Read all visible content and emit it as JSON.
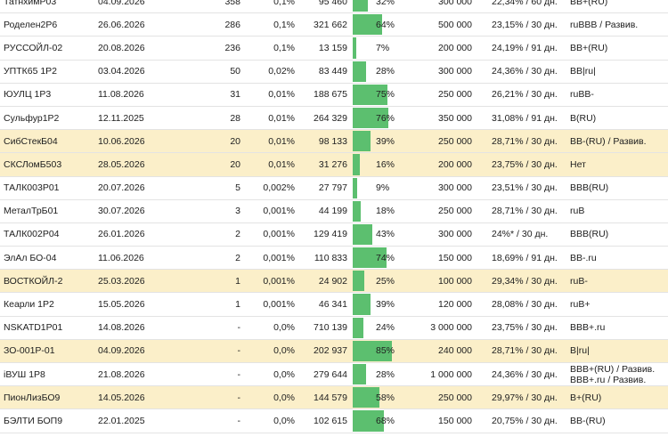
{
  "rows": [
    {
      "name": "ТатнхимР03",
      "date": "04.09.2026",
      "count": "358",
      "share": "0,1%",
      "volume": "95 460",
      "bar_pct": 32,
      "bar_label": "32%",
      "nominal": "300 000",
      "yield": "22,34% / 60 дн.",
      "rating": "BB+(RU)",
      "rating2": "",
      "highlight": false
    },
    {
      "name": "Роделен2Р6",
      "date": "26.06.2026",
      "count": "286",
      "share": "0,1%",
      "volume": "321 662",
      "bar_pct": 64,
      "bar_label": "64%",
      "nominal": "500 000",
      "yield": "23,15% / 30 дн.",
      "rating": "ruBBB / Развив.",
      "rating2": "",
      "highlight": false
    },
    {
      "name": "РУССОЙЛ-02",
      "date": "20.08.2026",
      "count": "236",
      "share": "0,1%",
      "volume": "13 159",
      "bar_pct": 7,
      "bar_label": "7%",
      "nominal": "200 000",
      "yield": "24,19% / 91 дн.",
      "rating": "BB+(RU)",
      "rating2": "",
      "highlight": false
    },
    {
      "name": "УПТК65 1Р2",
      "date": "03.04.2026",
      "count": "50",
      "share": "0,02%",
      "volume": "83 449",
      "bar_pct": 28,
      "bar_label": "28%",
      "nominal": "300 000",
      "yield": "24,36% / 30 дн.",
      "rating": "BB|ru|",
      "rating2": "",
      "highlight": false
    },
    {
      "name": "ЮУЛЦ 1Р3",
      "date": "11.08.2026",
      "count": "31",
      "share": "0,01%",
      "volume": "188 675",
      "bar_pct": 75,
      "bar_label": "75%",
      "nominal": "250 000",
      "yield": "26,21% / 30 дн.",
      "rating": "ruBB-",
      "rating2": "",
      "highlight": false
    },
    {
      "name": "Сульфур1Р2",
      "date": "12.11.2025",
      "count": "28",
      "share": "0,01%",
      "volume": "264 329",
      "bar_pct": 76,
      "bar_label": "76%",
      "nominal": "350 000",
      "yield": "31,08% / 91 дн.",
      "rating": "B(RU)",
      "rating2": "",
      "highlight": false
    },
    {
      "name": "СибСтекБ04",
      "date": "10.06.2026",
      "count": "20",
      "share": "0,01%",
      "volume": "98 133",
      "bar_pct": 39,
      "bar_label": "39%",
      "nominal": "250 000",
      "yield": "28,71% / 30 дн.",
      "rating": "BB-(RU) / Развив.",
      "rating2": "",
      "highlight": true
    },
    {
      "name": "СКСЛомБ503",
      "date": "28.05.2026",
      "count": "20",
      "share": "0,01%",
      "volume": "31 276",
      "bar_pct": 16,
      "bar_label": "16%",
      "nominal": "200 000",
      "yield": "23,75% / 30 дн.",
      "rating": "Нет",
      "rating2": "",
      "highlight": true
    },
    {
      "name": "ТАЛК003Р01",
      "date": "20.07.2026",
      "count": "5",
      "share": "0,002%",
      "volume": "27 797",
      "bar_pct": 9,
      "bar_label": "9%",
      "nominal": "300 000",
      "yield": "23,51% / 30 дн.",
      "rating": "BBB(RU)",
      "rating2": "",
      "highlight": false
    },
    {
      "name": "МеталТрБ01",
      "date": "30.07.2026",
      "count": "3",
      "share": "0,001%",
      "volume": "44 199",
      "bar_pct": 18,
      "bar_label": "18%",
      "nominal": "250 000",
      "yield": "28,71% / 30 дн.",
      "rating": "ruB",
      "rating2": "",
      "highlight": false
    },
    {
      "name": "ТАЛК002Р04",
      "date": "26.01.2026",
      "count": "2",
      "share": "0,001%",
      "volume": "129 419",
      "bar_pct": 43,
      "bar_label": "43%",
      "nominal": "300 000",
      "yield": "24%* / 30 дн.",
      "rating": "BBB(RU)",
      "rating2": "",
      "highlight": false
    },
    {
      "name": "ЭлАл БО-04",
      "date": "11.06.2026",
      "count": "2",
      "share": "0,001%",
      "volume": "110 833",
      "bar_pct": 74,
      "bar_label": "74%",
      "nominal": "150 000",
      "yield": "18,69% / 91 дн.",
      "rating": "BB-.ru",
      "rating2": "",
      "highlight": false
    },
    {
      "name": "ВОСТКОЙЛ-2",
      "date": "25.03.2026",
      "count": "1",
      "share": "0,001%",
      "volume": "24 902",
      "bar_pct": 25,
      "bar_label": "25%",
      "nominal": "100 000",
      "yield": "29,34% / 30 дн.",
      "rating": "ruB-",
      "rating2": "",
      "highlight": true
    },
    {
      "name": "Кеарли 1Р2",
      "date": "15.05.2026",
      "count": "1",
      "share": "0,001%",
      "volume": "46 341",
      "bar_pct": 39,
      "bar_label": "39%",
      "nominal": "120 000",
      "yield": "28,08% / 30 дн.",
      "rating": "ruB+",
      "rating2": "",
      "highlight": false
    },
    {
      "name": "NSKATD1P01",
      "date": "14.08.2026",
      "count": "-",
      "share": "0,0%",
      "volume": "710 139",
      "bar_pct": 24,
      "bar_label": "24%",
      "nominal": "3 000 000",
      "yield": "23,75% / 30 дн.",
      "rating": "BBB+.ru",
      "rating2": "",
      "highlight": false
    },
    {
      "name": "ЗО-001Р-01",
      "date": "04.09.2026",
      "count": "-",
      "share": "0,0%",
      "volume": "202 937",
      "bar_pct": 85,
      "bar_label": "85%",
      "nominal": "240 000",
      "yield": "28,71% / 30 дн.",
      "rating": "B|ru|",
      "rating2": "",
      "highlight": true
    },
    {
      "name": "iВУШ 1Р8",
      "date": "21.08.2026",
      "count": "-",
      "share": "0,0%",
      "volume": "279 644",
      "bar_pct": 28,
      "bar_label": "28%",
      "nominal": "1 000 000",
      "yield": "24,36% / 30 дн.",
      "rating": "BBB+(RU) / Развив.",
      "rating2": "BBB+.ru / Развив.",
      "highlight": false
    },
    {
      "name": "ПионЛизБО9",
      "date": "14.05.2026",
      "count": "-",
      "share": "0,0%",
      "volume": "144 579",
      "bar_pct": 58,
      "bar_label": "58%",
      "nominal": "250 000",
      "yield": "29,97% / 30 дн.",
      "rating": "B+(RU)",
      "rating2": "",
      "highlight": true
    },
    {
      "name": "БЭЛТИ БОП9",
      "date": "22.01.2025",
      "count": "-",
      "share": "0,0%",
      "volume": "102 615",
      "bar_pct": 68,
      "bar_label": "68%",
      "nominal": "150 000",
      "yield": "20,75% / 30 дн.",
      "rating": "BB-(RU)",
      "rating2": "",
      "highlight": false
    }
  ],
  "colors": {
    "bar": "#5cbf6f",
    "highlight": "#fbefc9"
  }
}
